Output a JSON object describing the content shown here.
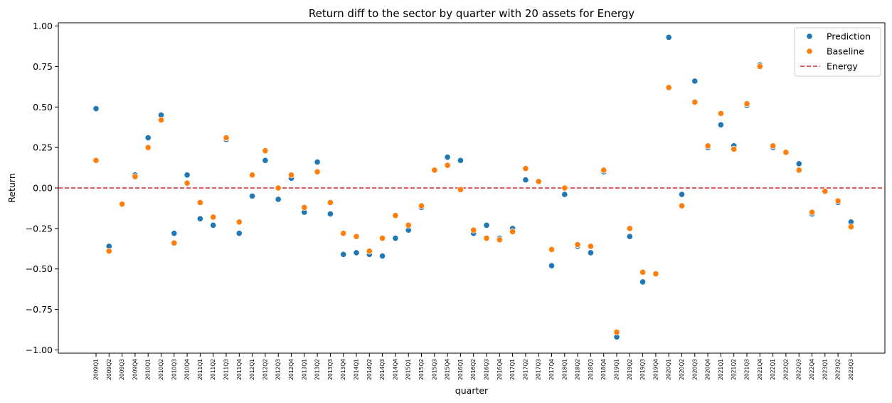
{
  "chart_data": {
    "type": "scatter",
    "title": "Return diff to the sector by quarter with 20 assets for Energy",
    "xlabel": "quarter",
    "ylabel": "Return",
    "ylim": [
      -1.02,
      1.02
    ],
    "yticks": [
      "1.00",
      "0.75",
      "0.50",
      "0.25",
      "0.00",
      "−0.25",
      "−0.50",
      "−0.75",
      "−1.00"
    ],
    "ytick_values": [
      1.0,
      0.75,
      0.5,
      0.25,
      0.0,
      -0.25,
      -0.5,
      -0.75,
      -1.0
    ],
    "grid": false,
    "legend_position": "top-right",
    "categories": [
      "2009Q1",
      "2009Q2",
      "2009Q3",
      "2009Q4",
      "2010Q1",
      "2010Q2",
      "2010Q3",
      "2010Q4",
      "2011Q1",
      "2011Q2",
      "2011Q3",
      "2011Q4",
      "2012Q1",
      "2012Q2",
      "2012Q3",
      "2012Q4",
      "2013Q1",
      "2013Q2",
      "2013Q3",
      "2013Q4",
      "2014Q1",
      "2014Q2",
      "2014Q3",
      "2014Q4",
      "2015Q1",
      "2015Q2",
      "2015Q3",
      "2015Q4",
      "2016Q1",
      "2016Q2",
      "2016Q3",
      "2016Q4",
      "2017Q1",
      "2017Q2",
      "2017Q3",
      "2017Q4",
      "2018Q1",
      "2018Q2",
      "2018Q3",
      "2018Q4",
      "2019Q1",
      "2019Q2",
      "2019Q3",
      "2019Q4",
      "2020Q1",
      "2020Q2",
      "2020Q3",
      "2020Q4",
      "2021Q1",
      "2021Q2",
      "2021Q3",
      "2021Q4",
      "2022Q1",
      "2022Q2",
      "2022Q3",
      "2022Q4",
      "2023Q1",
      "2023Q2",
      "2023Q3"
    ],
    "series": [
      {
        "name": "Prediction",
        "color": "#1f77b4",
        "values": [
          0.49,
          -0.36,
          -0.1,
          0.08,
          0.31,
          0.45,
          -0.28,
          0.08,
          -0.19,
          -0.23,
          0.3,
          -0.28,
          -0.05,
          0.17,
          -0.07,
          0.06,
          -0.15,
          0.16,
          -0.16,
          -0.41,
          -0.4,
          -0.41,
          -0.42,
          -0.31,
          -0.26,
          -0.12,
          0.11,
          0.19,
          0.17,
          -0.28,
          -0.23,
          -0.31,
          -0.25,
          0.05,
          0.04,
          -0.48,
          -0.04,
          -0.36,
          -0.4,
          0.1,
          -0.92,
          -0.3,
          -0.58,
          -0.53,
          0.93,
          -0.04,
          0.66,
          0.25,
          0.39,
          0.26,
          0.51,
          0.76,
          0.25,
          0.22,
          0.15,
          -0.16,
          -0.02,
          -0.09,
          -0.21
        ]
      },
      {
        "name": "Baseline",
        "color": "#ff7f0e",
        "values": [
          0.17,
          -0.39,
          -0.1,
          0.07,
          0.25,
          0.42,
          -0.34,
          0.03,
          -0.09,
          -0.18,
          0.31,
          -0.21,
          0.08,
          0.23,
          0.0,
          0.08,
          -0.12,
          0.1,
          -0.09,
          -0.28,
          -0.3,
          -0.39,
          -0.31,
          -0.17,
          -0.23,
          -0.11,
          0.11,
          0.14,
          -0.01,
          -0.26,
          -0.31,
          -0.32,
          -0.27,
          0.12,
          0.04,
          -0.38,
          0.0,
          -0.35,
          -0.36,
          0.11,
          -0.89,
          -0.25,
          -0.52,
          -0.53,
          0.62,
          -0.11,
          0.53,
          0.26,
          0.46,
          0.24,
          0.52,
          0.75,
          0.26,
          0.22,
          0.11,
          -0.15,
          -0.02,
          -0.08,
          -0.24
        ]
      }
    ],
    "reference_line": {
      "name": "Energy",
      "y": 0.0,
      "color": "#d62728",
      "style": "dashed"
    }
  }
}
